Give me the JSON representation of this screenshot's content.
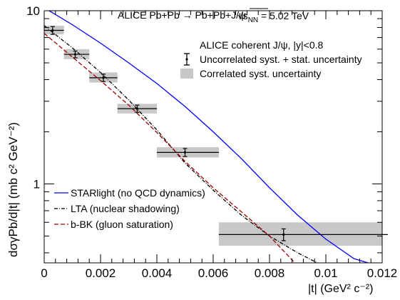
{
  "chart_data": {
    "type": "scatter",
    "title": "ALICE Pb+Pb → Pb+Pb+J/ψ",
    "energy_prefix": "√s",
    "energy_sub": "NN",
    "energy_suffix": " = 5.02 TeV",
    "xlabel": "|t| (GeV² c⁻²)",
    "ylabel": "dσγPb/d|t| (mb c² GeV⁻²)",
    "x_scale": "linear",
    "y_scale": "log",
    "xlim": [
      0,
      0.012
    ],
    "ylim": [
      0.35,
      10
    ],
    "x_ticks": [
      {
        "v": 0,
        "label": "0"
      },
      {
        "v": 0.002,
        "label": "0.002"
      },
      {
        "v": 0.004,
        "label": "0.004"
      },
      {
        "v": 0.006,
        "label": "0.006"
      },
      {
        "v": 0.008,
        "label": "0.008"
      },
      {
        "v": 0.01,
        "label": "0.01"
      },
      {
        "v": 0.012,
        "label": "0.012"
      }
    ],
    "y_ticks": [
      {
        "v": 1,
        "label": "1"
      },
      {
        "v": 10,
        "label": "10"
      }
    ],
    "data_legend_header": "ALICE coherent J/ψ, |y|<0.8",
    "data_legend_items": [
      {
        "label": "Uncorrelated syst. + stat. uncertainty",
        "style": "errorbar"
      },
      {
        "label": "Correlated syst. uncertainty",
        "style": "box"
      }
    ],
    "data": {
      "name": "ALICE coherent J/ψ, |y|<0.8",
      "points": [
        {
          "x": 0.0003,
          "y": 7.7,
          "xlo": 0.0,
          "xhi": 0.0007,
          "err": 0.4,
          "box_lo": 7.3,
          "box_hi": 8.2
        },
        {
          "x": 0.0011,
          "y": 5.6,
          "xlo": 0.0007,
          "xhi": 0.0016,
          "err": 0.25,
          "box_lo": 5.25,
          "box_hi": 6.0
        },
        {
          "x": 0.0021,
          "y": 4.1,
          "xlo": 0.0016,
          "xhi": 0.0026,
          "err": 0.2,
          "box_lo": 3.85,
          "box_hi": 4.4
        },
        {
          "x": 0.0033,
          "y": 2.72,
          "xlo": 0.0026,
          "xhi": 0.004,
          "err": 0.13,
          "box_lo": 2.55,
          "box_hi": 2.9
        },
        {
          "x": 0.005,
          "y": 1.52,
          "xlo": 0.004,
          "xhi": 0.0062,
          "err": 0.08,
          "box_lo": 1.42,
          "box_hi": 1.63
        },
        {
          "x": 0.0085,
          "y": 0.51,
          "xlo": 0.0062,
          "xhi": 0.0122,
          "err": 0.04,
          "box_lo": 0.44,
          "box_hi": 0.6
        }
      ]
    },
    "series": [
      {
        "name": "STARlight (no QCD dynamics)",
        "color": "#0000ff",
        "dash": "solid",
        "x": [
          0,
          0.001,
          0.002,
          0.003,
          0.004,
          0.005,
          0.006,
          0.007,
          0.008,
          0.009,
          0.01,
          0.011,
          0.0115
        ],
        "y": [
          10.4,
          8.3,
          6.5,
          5.0,
          3.8,
          2.8,
          2.0,
          1.4,
          0.95,
          0.66,
          0.48,
          0.37,
          0.35
        ]
      },
      {
        "name": "LTA (nuclear shadowing)",
        "color": "#000000",
        "dash": "dashdot",
        "x": [
          0,
          0.001,
          0.002,
          0.003,
          0.004,
          0.005,
          0.006,
          0.007,
          0.008,
          0.009,
          0.0097
        ],
        "y": [
          8.2,
          6.1,
          4.4,
          3.05,
          2.05,
          1.32,
          0.92,
          0.66,
          0.5,
          0.4,
          0.35
        ]
      },
      {
        "name": "b-BK (gluon saturation)",
        "color": "#a00000",
        "dash": "dashed",
        "x": [
          0,
          0.001,
          0.002,
          0.003,
          0.004,
          0.005,
          0.006,
          0.007,
          0.008,
          0.0089
        ],
        "y": [
          7.4,
          5.4,
          3.95,
          2.85,
          1.98,
          1.35,
          0.95,
          0.69,
          0.5,
          0.35
        ]
      }
    ],
    "model_legend_placement": "bottom-left",
    "data_legend_placement": "top-right",
    "grid": false
  }
}
